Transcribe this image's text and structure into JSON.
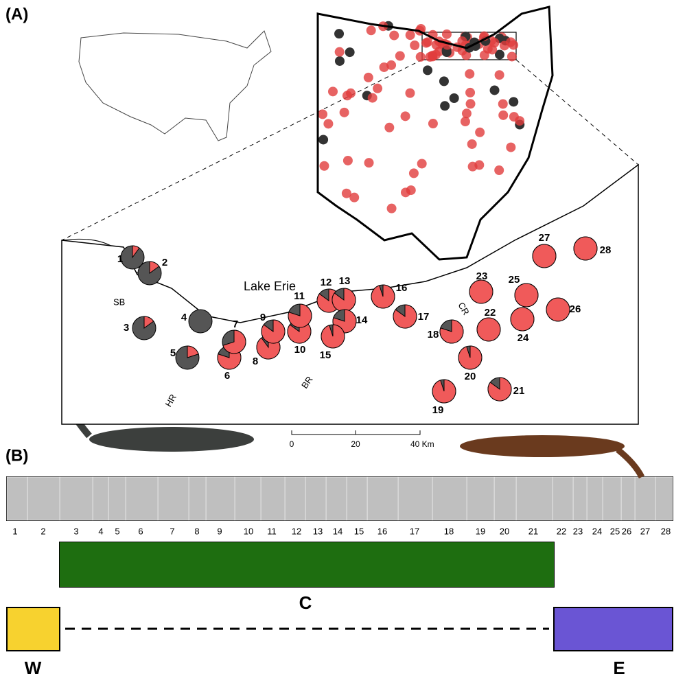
{
  "panel_labels": [
    "(A)",
    "(B)"
  ],
  "map": {
    "lake": "Lake Erie",
    "rivers": [
      "SB",
      "HR",
      "BR",
      "CR"
    ],
    "scale_labels": [
      "0",
      "20",
      "40 Km"
    ],
    "sites": [
      {
        "label": "1",
        "red_share": 10
      },
      {
        "label": "2",
        "red_share": 15
      },
      {
        "label": "3",
        "red_share": 15
      },
      {
        "label": "4",
        "red_share": 0
      },
      {
        "label": "5",
        "red_share": 20
      },
      {
        "label": "6",
        "red_share": 80
      },
      {
        "label": "7",
        "red_share": 70
      },
      {
        "label": "8",
        "red_share": 90
      },
      {
        "label": "9",
        "red_share": 85
      },
      {
        "label": "10",
        "red_share": 85
      },
      {
        "label": "11",
        "red_share": 80
      },
      {
        "label": "12",
        "red_share": 85
      },
      {
        "label": "13",
        "red_share": 85
      },
      {
        "label": "14",
        "red_share": 80
      },
      {
        "label": "15",
        "red_share": 95
      },
      {
        "label": "16",
        "red_share": 95
      },
      {
        "label": "17",
        "red_share": 85
      },
      {
        "label": "18",
        "red_share": 80
      },
      {
        "label": "19",
        "red_share": 95
      },
      {
        "label": "20",
        "red_share": 95
      },
      {
        "label": "21",
        "red_share": 85
      },
      {
        "label": "22",
        "red_share": 100
      },
      {
        "label": "23",
        "red_share": 100
      },
      {
        "label": "24",
        "red_share": 100
      },
      {
        "label": "25",
        "red_share": 100
      },
      {
        "label": "26",
        "red_share": 100
      },
      {
        "label": "27",
        "red_share": 100
      },
      {
        "label": "28",
        "red_share": 100
      }
    ]
  },
  "structure": {
    "labels": [
      "1",
      "2",
      "3",
      "4",
      "5",
      "6",
      "7",
      "8",
      "9",
      "10",
      "11",
      "12",
      "13",
      "14",
      "15",
      "16",
      "17",
      "18",
      "19",
      "20",
      "21",
      "22",
      "23",
      "24",
      "25",
      "26",
      "27",
      "28"
    ],
    "cluster": "C",
    "west": "W",
    "east": "E"
  }
}
